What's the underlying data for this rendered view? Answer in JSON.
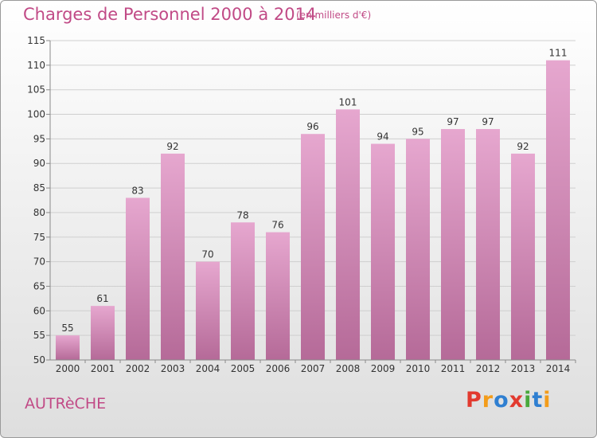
{
  "header": {
    "title": "Charges de Personnel 2000 à 2014",
    "subtitle": "(en milliers d'€)"
  },
  "footer": {
    "city": "AUTRèCHE",
    "brand_letters": [
      "P",
      "r",
      "o",
      "x",
      "i",
      "t",
      "i"
    ],
    "brand_colors": [
      "#e23a2f",
      "#f39c1a",
      "#2f7fd1",
      "#e23a2f",
      "#49a83b",
      "#2f7fd1",
      "#f39c1a"
    ]
  },
  "colors": {
    "bar_top": "#e6a7cf",
    "bar_bottom": "#b56a98",
    "grid": "#cfcfcf",
    "axis": "#8a8a8a"
  },
  "chart_data": {
    "type": "bar",
    "title": "Charges de Personnel 2000 à 2014",
    "subtitle": "(en milliers d'€)",
    "categories": [
      "2000",
      "2001",
      "2002",
      "2003",
      "2004",
      "2005",
      "2006",
      "2007",
      "2008",
      "2009",
      "2010",
      "2011",
      "2012",
      "2013",
      "2014"
    ],
    "values": [
      55,
      61,
      83,
      92,
      70,
      78,
      76,
      96,
      101,
      94,
      95,
      97,
      97,
      92,
      111
    ],
    "ylim": [
      50,
      115
    ],
    "yticks": [
      50,
      55,
      60,
      65,
      70,
      75,
      80,
      85,
      90,
      95,
      100,
      105,
      110,
      115
    ],
    "grid": true,
    "xlabel": "",
    "ylabel": ""
  }
}
